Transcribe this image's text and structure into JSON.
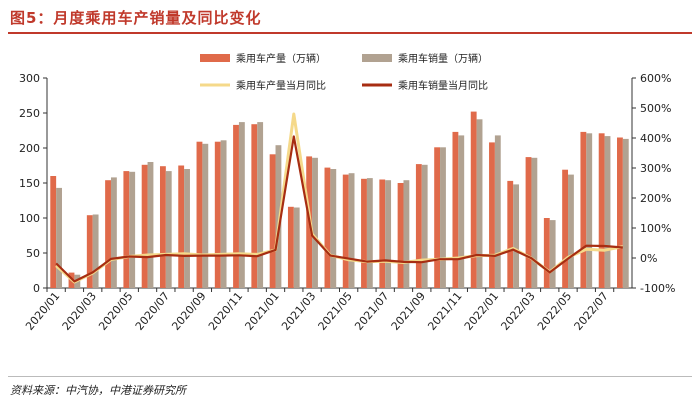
{
  "title": "图5：月度乘用车产销量及同比变化",
  "source": "资料来源：中汽协，中港证券研究所",
  "chart_data": {
    "type": "bar",
    "categories": [
      "2020/01",
      "2020/02",
      "2020/03",
      "2020/04",
      "2020/05",
      "2020/06",
      "2020/07",
      "2020/08",
      "2020/09",
      "2020/10",
      "2020/11",
      "2020/12",
      "2021/01",
      "2021/02",
      "2021/03",
      "2021/04",
      "2021/05",
      "2021/06",
      "2021/07",
      "2021/08",
      "2021/09",
      "2021/10",
      "2021/11",
      "2021/12",
      "2022/01",
      "2022/02",
      "2022/03",
      "2022/04",
      "2022/05",
      "2022/06",
      "2022/07",
      "2022/08"
    ],
    "x_tick_labels": [
      "2020/01",
      "2020/03",
      "2020/05",
      "2020/07",
      "2020/09",
      "2020/11",
      "2021/01",
      "2021/03",
      "2021/05",
      "2021/07",
      "2021/09",
      "2021/11",
      "2022/01",
      "2022/03",
      "2022/05",
      "2022/07"
    ],
    "series": [
      {
        "name": "乘用车产量（万辆）",
        "kind": "bar",
        "axis": "left",
        "color": "#e06a4a",
        "values": [
          160,
          22,
          104,
          154,
          167,
          176,
          174,
          175,
          209,
          209,
          233,
          234,
          191,
          116,
          188,
          172,
          162,
          156,
          155,
          150,
          177,
          201,
          223,
          252,
          208,
          153,
          187,
          100,
          169,
          223,
          221,
          215
        ]
      },
      {
        "name": "乘用车销量（万辆）",
        "kind": "bar",
        "axis": "left",
        "color": "#b1a291",
        "values": [
          143,
          19,
          105,
          158,
          166,
          180,
          167,
          170,
          206,
          211,
          237,
          237,
          204,
          115,
          186,
          170,
          164,
          157,
          154,
          154,
          176,
          201,
          218,
          241,
          218,
          148,
          186,
          97,
          162,
          221,
          217,
          213
        ]
      },
      {
        "name": "乘用车产量当月同比",
        "kind": "line",
        "axis": "right",
        "color": "#f5d98a",
        "values": [
          -26,
          -80,
          -50,
          -5,
          5,
          10,
          12,
          14,
          10,
          12,
          14,
          12,
          27,
          480,
          80,
          9,
          -6,
          -12,
          -11,
          -15,
          -7,
          -4,
          0,
          8,
          9,
          32,
          -1,
          -47,
          2,
          29,
          26,
          38
        ]
      },
      {
        "name": "乘用车销量当月同比",
        "kind": "line",
        "axis": "right",
        "color": "#a72d12",
        "values": [
          -18,
          -78,
          -48,
          -3,
          5,
          3,
          10,
          7,
          8,
          8,
          9,
          6,
          27,
          405,
          75,
          8,
          -2,
          -12,
          -8,
          -13,
          -14,
          -4,
          -4,
          10,
          7,
          28,
          -1,
          -48,
          -2,
          41,
          40,
          35
        ]
      }
    ],
    "ylim_left": [
      0,
      300
    ],
    "yticks_left": [
      0,
      50,
      100,
      150,
      200,
      250,
      300
    ],
    "ylim_right": [
      -100,
      600
    ],
    "yticks_right": [
      "-100%",
      "0%",
      "100%",
      "200%",
      "300%",
      "400%",
      "500%",
      "600%"
    ],
    "legend_position": "top-center",
    "grid": false
  }
}
